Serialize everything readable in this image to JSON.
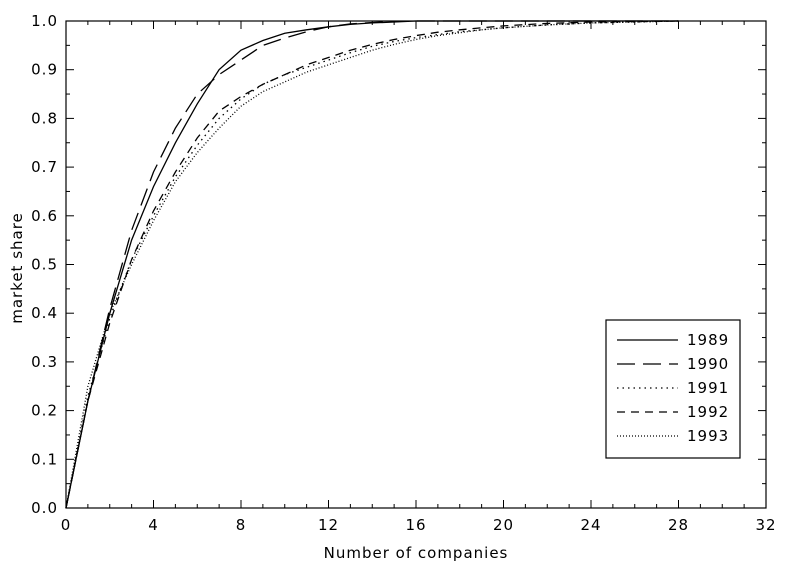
{
  "chart_data": {
    "type": "line",
    "xlabel": "Number of companies",
    "ylabel": "market share",
    "xlim": [
      0,
      32
    ],
    "ylim": [
      0,
      1.0
    ],
    "xticks": [
      "0",
      "4",
      "8",
      "12",
      "16",
      "20",
      "24",
      "28",
      "32"
    ],
    "yticks": [
      "0.0",
      "0.1",
      "0.2",
      "0.3",
      "0.4",
      "0.5",
      "0.6",
      "0.7",
      "0.8",
      "0.9",
      "1.0"
    ],
    "grid": false,
    "legend_position": "bottom-right",
    "series": [
      {
        "name": "1989",
        "dash": "solid",
        "x": [
          0,
          1,
          2,
          3,
          4,
          5,
          6,
          7,
          8,
          9,
          10,
          11,
          12,
          13,
          14,
          15,
          16,
          17,
          18,
          20,
          24,
          28
        ],
        "y": [
          0.0,
          0.22,
          0.4,
          0.55,
          0.66,
          0.75,
          0.83,
          0.9,
          0.94,
          0.96,
          0.975,
          0.982,
          0.988,
          0.993,
          0.996,
          0.998,
          1.0,
          1.0,
          1.0,
          1.0,
          1.0,
          1.0
        ]
      },
      {
        "name": "1990",
        "dash": "long-dash",
        "x": [
          0,
          1,
          2,
          3,
          4,
          5,
          6,
          7,
          8,
          9,
          10,
          11,
          12,
          13,
          14,
          15,
          16,
          17,
          18,
          20,
          24,
          28
        ],
        "y": [
          0.0,
          0.22,
          0.41,
          0.57,
          0.69,
          0.78,
          0.85,
          0.89,
          0.92,
          0.95,
          0.965,
          0.978,
          0.988,
          0.994,
          0.997,
          0.999,
          1.0,
          1.0,
          1.0,
          1.0,
          1.0,
          1.0
        ]
      },
      {
        "name": "1991",
        "dash": "dotted",
        "x": [
          0,
          1,
          2,
          3,
          4,
          5,
          6,
          7,
          8,
          9,
          10,
          11,
          12,
          13,
          14,
          15,
          16,
          17,
          18,
          19,
          20,
          22,
          24,
          26,
          28
        ],
        "y": [
          0.0,
          0.23,
          0.39,
          0.51,
          0.6,
          0.68,
          0.745,
          0.8,
          0.84,
          0.87,
          0.89,
          0.905,
          0.92,
          0.935,
          0.948,
          0.958,
          0.966,
          0.972,
          0.978,
          0.982,
          0.986,
          0.992,
          0.996,
          0.998,
          1.0
        ]
      },
      {
        "name": "1992",
        "dash": "short-dash",
        "x": [
          0,
          1,
          2,
          3,
          4,
          5,
          6,
          7,
          8,
          9,
          10,
          11,
          12,
          13,
          14,
          15,
          16,
          17,
          18,
          19,
          20,
          22,
          24,
          26,
          28
        ],
        "y": [
          0.0,
          0.22,
          0.38,
          0.51,
          0.61,
          0.69,
          0.76,
          0.815,
          0.845,
          0.87,
          0.89,
          0.91,
          0.925,
          0.94,
          0.952,
          0.962,
          0.97,
          0.977,
          0.982,
          0.986,
          0.99,
          0.995,
          0.998,
          0.999,
          1.0
        ]
      },
      {
        "name": "1993",
        "dash": "fine-dotted",
        "x": [
          0,
          1,
          2,
          3,
          4,
          5,
          6,
          7,
          8,
          9,
          10,
          11,
          12,
          13,
          14,
          15,
          16,
          17,
          18,
          19,
          20,
          22,
          24,
          26,
          28
        ],
        "y": [
          0.0,
          0.25,
          0.4,
          0.5,
          0.59,
          0.67,
          0.73,
          0.78,
          0.825,
          0.855,
          0.875,
          0.895,
          0.91,
          0.925,
          0.94,
          0.952,
          0.962,
          0.97,
          0.976,
          0.982,
          0.986,
          0.992,
          0.996,
          0.998,
          1.0
        ]
      }
    ]
  }
}
